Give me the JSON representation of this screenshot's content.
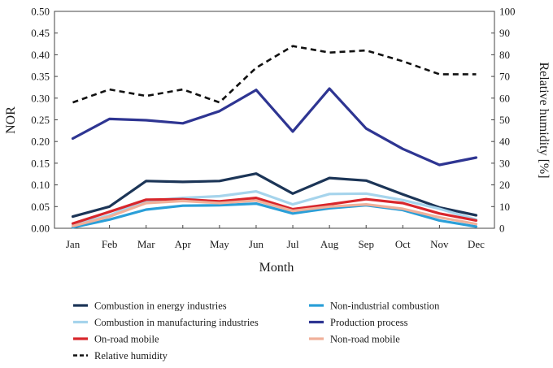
{
  "chart_data": {
    "type": "line",
    "title": "",
    "xlabel": "Month",
    "ylabel": "NOR",
    "y2label": "Relative humidity [%]",
    "ylim": [
      0,
      0.5
    ],
    "y2lim": [
      0,
      100
    ],
    "yticks": [
      "0.00",
      "0.05",
      "0.10",
      "0.15",
      "0.20",
      "0.25",
      "0.30",
      "0.35",
      "0.40",
      "0.45",
      "0.50"
    ],
    "y2ticks": [
      "0",
      "10",
      "20",
      "30",
      "40",
      "50",
      "60",
      "70",
      "80",
      "90",
      "100"
    ],
    "categories": [
      "Jan",
      "Feb",
      "Mar",
      "Apr",
      "May",
      "Jun",
      "Jul",
      "Aug",
      "Sep",
      "Oct",
      "Nov",
      "Dec"
    ],
    "grid": false,
    "legend_position": "bottom",
    "series": [
      {
        "name": "Combustion in energy industries",
        "color": "#1c3557",
        "axis": "left",
        "dash": "solid",
        "values": [
          0.027,
          0.05,
          0.109,
          0.107,
          0.109,
          0.126,
          0.08,
          0.116,
          0.11,
          0.078,
          0.048,
          0.03
        ]
      },
      {
        "name": "Non-industrial combustion",
        "color": "#2a9fd8",
        "axis": "left",
        "dash": "solid",
        "values": [
          0.002,
          0.02,
          0.043,
          0.052,
          0.053,
          0.057,
          0.034,
          0.046,
          0.053,
          0.042,
          0.018,
          0.004
        ]
      },
      {
        "name": "Combustion in manufacturing industries",
        "color": "#a6d4ec",
        "axis": "left",
        "dash": "solid",
        "values": [
          0.007,
          0.03,
          0.063,
          0.07,
          0.074,
          0.085,
          0.055,
          0.079,
          0.08,
          0.065,
          0.045,
          0.02
        ]
      },
      {
        "name": "Production process",
        "color": "#2e3592",
        "axis": "left",
        "dash": "solid",
        "values": [
          0.207,
          0.252,
          0.249,
          0.242,
          0.27,
          0.319,
          0.223,
          0.322,
          0.23,
          0.183,
          0.146,
          0.163
        ]
      },
      {
        "name": "On-road mobile",
        "color": "#d8262b",
        "axis": "left",
        "dash": "solid",
        "values": [
          0.011,
          0.038,
          0.066,
          0.067,
          0.062,
          0.07,
          0.044,
          0.055,
          0.067,
          0.058,
          0.034,
          0.018
        ]
      },
      {
        "name": "Non-road mobile",
        "color": "#f0b09a",
        "axis": "left",
        "dash": "solid",
        "values": [
          0.005,
          0.027,
          0.058,
          0.063,
          0.058,
          0.064,
          0.04,
          0.05,
          0.055,
          0.045,
          0.025,
          0.01
        ]
      },
      {
        "name": "Relative humidity",
        "color": "#111111",
        "axis": "right",
        "dash": "dashed",
        "values": [
          58,
          64,
          61,
          64,
          58,
          74,
          84,
          81,
          82,
          77,
          71,
          71
        ]
      }
    ]
  }
}
